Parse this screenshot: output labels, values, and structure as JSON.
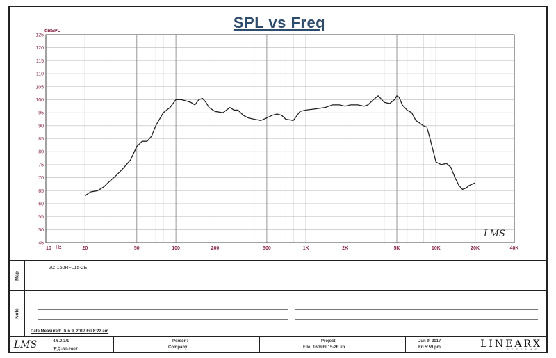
{
  "chart_data": {
    "type": "line",
    "title": "SPL vs Freq",
    "ylabel": "dBSPL",
    "xlabel": "Hz",
    "xscale": "log",
    "xlim": [
      10,
      40000
    ],
    "ylim": [
      45,
      125
    ],
    "grid": true,
    "legend": "bottom-panel",
    "y_ticks": [
      "125",
      "120",
      "115",
      "110",
      "105",
      "100",
      "95",
      "90",
      "85",
      "80",
      "75",
      "70",
      "65",
      "60",
      "55",
      "50",
      "45"
    ],
    "x_ticks": [
      {
        "v": 10,
        "label": "10"
      },
      {
        "v": 20,
        "label": "20"
      },
      {
        "v": 50,
        "label": "50"
      },
      {
        "v": 100,
        "label": "100"
      },
      {
        "v": 200,
        "label": "200"
      },
      {
        "v": 500,
        "label": "500"
      },
      {
        "v": 1000,
        "label": "1K"
      },
      {
        "v": 2000,
        "label": "2K"
      },
      {
        "v": 5000,
        "label": "5K"
      },
      {
        "v": 10000,
        "label": "10K"
      },
      {
        "v": 20000,
        "label": "20K"
      },
      {
        "v": 40000,
        "label": "40K"
      }
    ],
    "series": [
      {
        "name": "160RFL15-2E",
        "color": "#222222",
        "x": [
          20,
          22,
          25,
          28,
          30,
          35,
          40,
          45,
          50,
          55,
          60,
          65,
          70,
          80,
          90,
          100,
          110,
          120,
          130,
          140,
          150,
          160,
          170,
          180,
          200,
          230,
          260,
          280,
          300,
          330,
          360,
          400,
          450,
          500,
          550,
          600,
          650,
          700,
          800,
          900,
          1000,
          1200,
          1400,
          1500,
          1600,
          1800,
          2000,
          2200,
          2500,
          2800,
          3000,
          3300,
          3600,
          4000,
          4400,
          4800,
          5000,
          5200,
          5500,
          6000,
          6500,
          7000,
          7500,
          8000,
          8500,
          9000,
          10000,
          11000,
          12000,
          13000,
          14000,
          15000,
          16000,
          17000,
          18000,
          19000,
          20000
        ],
        "y": [
          63,
          64.5,
          65,
          66.5,
          68,
          71,
          74,
          77,
          82,
          84,
          84,
          86,
          90,
          95,
          97,
          100,
          100,
          99.5,
          99,
          98,
          100,
          100.5,
          99,
          97,
          95.5,
          95,
          97,
          96,
          96,
          94,
          93,
          92.5,
          92,
          93,
          94,
          94.5,
          94,
          92.5,
          92,
          95.5,
          96,
          96.5,
          97,
          97.5,
          98,
          98,
          97.5,
          98,
          98,
          97.5,
          98,
          100,
          101.5,
          99,
          98.5,
          100,
          101.5,
          101,
          98,
          96,
          95,
          92,
          91,
          90,
          89.5,
          85,
          76,
          75,
          75.5,
          74,
          70,
          67,
          65.5,
          66,
          67,
          67.5,
          68
        ]
      }
    ]
  },
  "panels": {
    "map_label": "Map",
    "legend_text": "20: 160RFL15-2E",
    "note_label": "Note",
    "date_measured": "Date Measured: Jun 9, 2017 Fri 8:22 am"
  },
  "footer": {
    "lms": "LMS",
    "watermark": "LMS",
    "version": "4.6.0.3/1",
    "version_date": "五月-30-2007",
    "person_label": "Person:",
    "company_label": "Company:",
    "project_label": "Project:",
    "file_label": "File: 160RFL15-2E.lib",
    "date": "Jun 9, 2017",
    "time": "Fri 5:59 pm",
    "brand": "LINEARX",
    "brand_sub": "SYSTEMS"
  }
}
